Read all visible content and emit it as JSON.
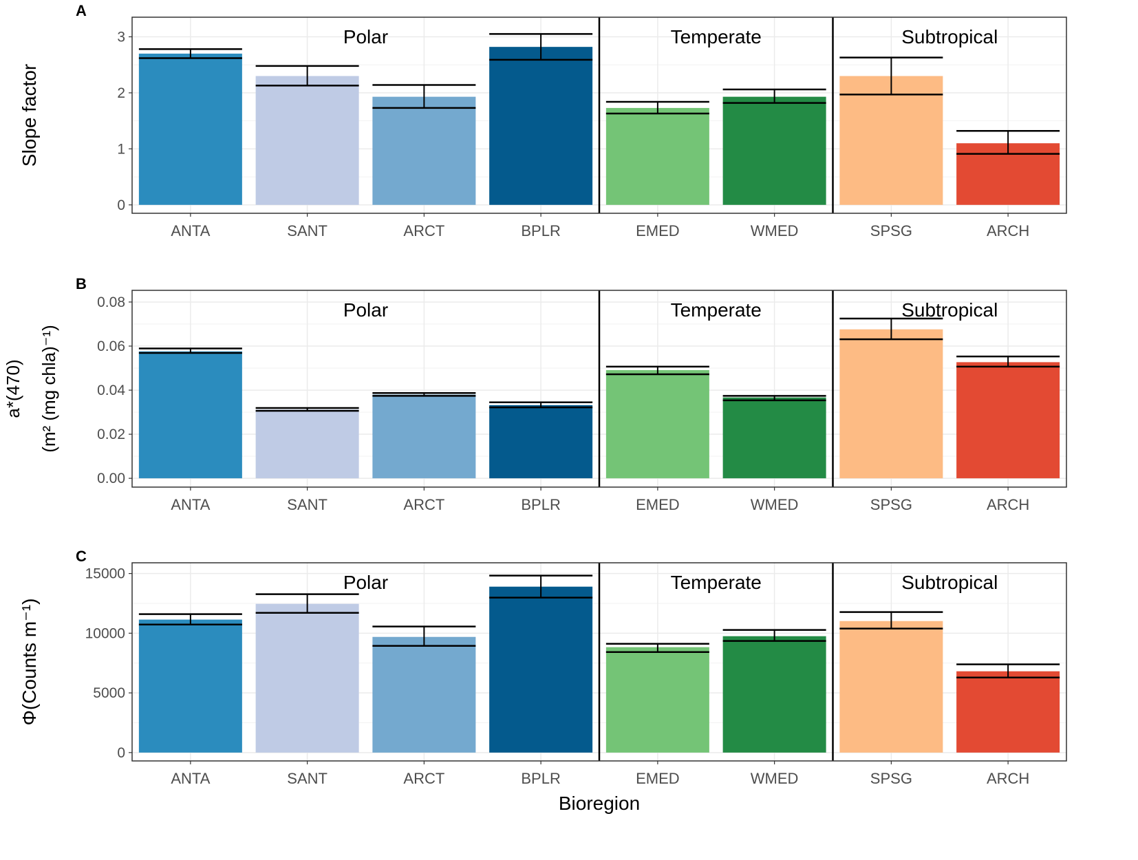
{
  "chart_data": [
    {
      "type": "bar",
      "panel": "A",
      "ylabel": "Slope factor",
      "ylim": [
        -0.15,
        3.35
      ],
      "yticks": [
        "0",
        "1",
        "2",
        "3"
      ],
      "ytick_values": [
        0,
        1,
        2,
        3
      ],
      "categories": [
        "ANTA",
        "SANT",
        "ARCT",
        "BPLR",
        "EMED",
        "WMED",
        "SPSG",
        "ARCH"
      ],
      "values": [
        2.7,
        2.3,
        1.93,
        2.82,
        1.73,
        1.93,
        2.3,
        1.1
      ],
      "err_high": [
        2.78,
        2.48,
        2.14,
        3.05,
        1.84,
        2.06,
        2.63,
        1.32
      ],
      "err_low": [
        2.62,
        2.13,
        1.73,
        2.59,
        1.63,
        1.82,
        1.97,
        0.91
      ]
    },
    {
      "type": "bar",
      "panel": "B",
      "ylabel_line1": "a*(470)",
      "ylabel_line2": "(m² (mg chla)⁻¹)",
      "ylim": [
        -0.004,
        0.0853
      ],
      "yticks": [
        "0.00",
        "0.02",
        "0.04",
        "0.06",
        "0.08"
      ],
      "ytick_values": [
        0,
        0.02,
        0.04,
        0.06,
        0.08
      ],
      "categories": [
        "ANTA",
        "SANT",
        "ARCT",
        "BPLR",
        "EMED",
        "WMED",
        "SPSG",
        "ARCH"
      ],
      "values": [
        0.0576,
        0.0312,
        0.038,
        0.0332,
        0.0491,
        0.0367,
        0.0676,
        0.0527
      ],
      "err_high": [
        0.0589,
        0.0319,
        0.0387,
        0.0345,
        0.0507,
        0.0374,
        0.0725,
        0.0553
      ],
      "err_low": [
        0.0569,
        0.0306,
        0.0374,
        0.0322,
        0.0472,
        0.0354,
        0.0631,
        0.0507
      ]
    },
    {
      "type": "bar",
      "panel": "C",
      "ylabel": "Φ(Counts  m⁻¹)",
      "xlabel": "Bioregion",
      "ylim": [
        -700,
        15900
      ],
      "yticks": [
        "0",
        "5000",
        "10000",
        "15000"
      ],
      "ytick_values": [
        0,
        5000,
        10000,
        15000
      ],
      "categories": [
        "ANTA",
        "SANT",
        "ARCT",
        "BPLR",
        "EMED",
        "WMED",
        "SPSG",
        "ARCH"
      ],
      "values": [
        11140,
        12460,
        9690,
        13900,
        8830,
        9750,
        11020,
        6810
      ],
      "err_high": [
        11600,
        13270,
        10560,
        14830,
        9115,
        10270,
        11770,
        7390
      ],
      "err_low": [
        10730,
        11710,
        8940,
        12980,
        8420,
        9350,
        10390,
        6290
      ]
    }
  ],
  "groups": [
    {
      "label": "Polar",
      "start": 0,
      "end": 3
    },
    {
      "label": "Temperate",
      "start": 4,
      "end": 5
    },
    {
      "label": "Subtropical",
      "start": 6,
      "end": 7
    }
  ],
  "colors": [
    "#2b8cbe",
    "#bfcbe5",
    "#74a9cf",
    "#045a8d",
    "#74c476",
    "#238b45",
    "#fdbb84",
    "#e34a33"
  ],
  "grid": true
}
